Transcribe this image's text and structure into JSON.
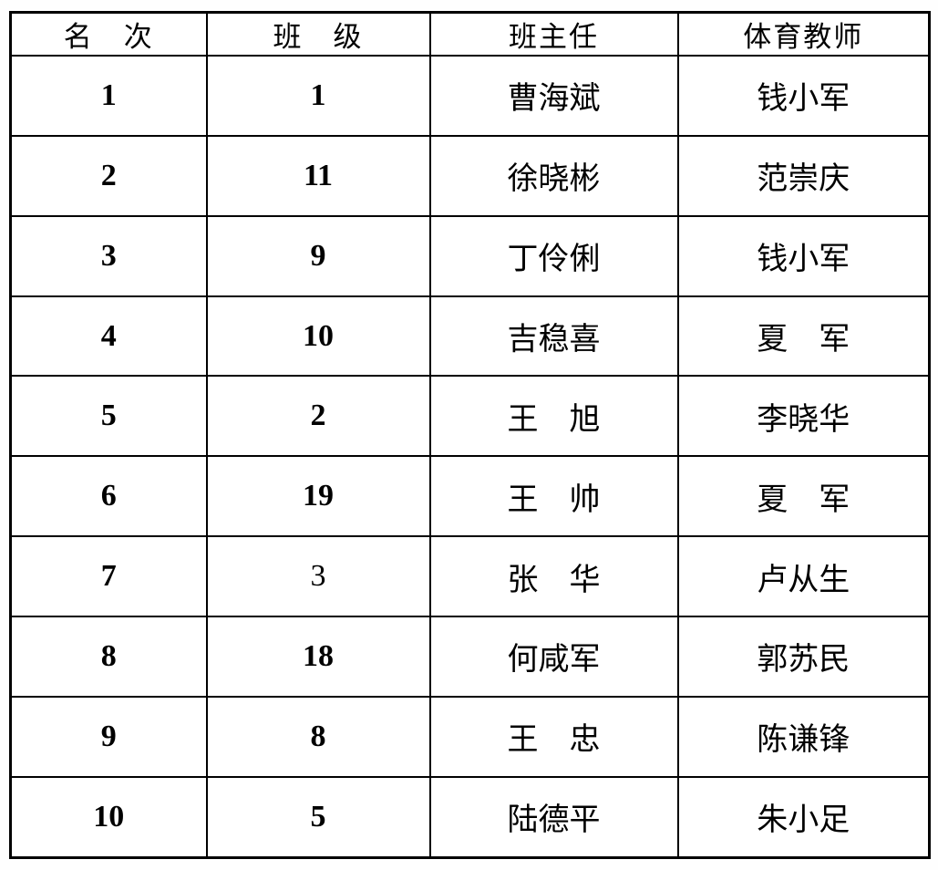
{
  "table": {
    "columns": [
      {
        "label": "名　次"
      },
      {
        "label": "班　级"
      },
      {
        "label": "班主任"
      },
      {
        "label": "体育教师"
      }
    ],
    "rows": [
      {
        "rank": "1",
        "class": "1",
        "class_bold": true,
        "head_teacher": "曹海斌",
        "pe_teacher": "钱小军"
      },
      {
        "rank": "2",
        "class": "11",
        "class_bold": true,
        "head_teacher": "徐晓彬",
        "pe_teacher": "范崇庆"
      },
      {
        "rank": "3",
        "class": "9",
        "class_bold": true,
        "head_teacher": "丁伶俐",
        "pe_teacher": "钱小军"
      },
      {
        "rank": "4",
        "class": "10",
        "class_bold": true,
        "head_teacher": "吉稳喜",
        "pe_teacher": "夏　军"
      },
      {
        "rank": "5",
        "class": "2",
        "class_bold": true,
        "head_teacher": "王　旭",
        "pe_teacher": "李晓华"
      },
      {
        "rank": "6",
        "class": "19",
        "class_bold": true,
        "head_teacher": "王　帅",
        "pe_teacher": "夏　军"
      },
      {
        "rank": "7",
        "class": "3",
        "class_bold": false,
        "head_teacher": "张　华",
        "pe_teacher": "卢从生"
      },
      {
        "rank": "8",
        "class": "18",
        "class_bold": true,
        "head_teacher": "何咸军",
        "pe_teacher": "郭苏民"
      },
      {
        "rank": "9",
        "class": "8",
        "class_bold": true,
        "head_teacher": "王　忠",
        "pe_teacher": "陈谦锋"
      },
      {
        "rank": "10",
        "class": "5",
        "class_bold": true,
        "head_teacher": "陆德平",
        "pe_teacher": "朱小足"
      }
    ],
    "colors": {
      "border": "#000000",
      "background": "#ffffff",
      "text": "#000000"
    }
  }
}
